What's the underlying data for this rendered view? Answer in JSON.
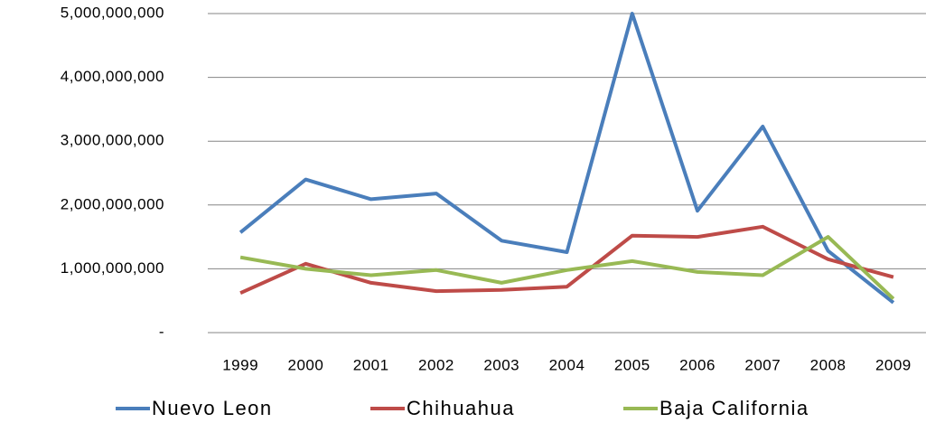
{
  "chart_data": {
    "type": "line",
    "categories": [
      "1999",
      "2000",
      "2001",
      "2002",
      "2003",
      "2004",
      "2005",
      "2006",
      "2007",
      "2008",
      "2009"
    ],
    "series": [
      {
        "name": "Nuevo Leon",
        "color": "#4a7ebb",
        "values": [
          1570000000,
          2400000000,
          2090000000,
          2180000000,
          1440000000,
          1260000000,
          5000000000,
          1910000000,
          3230000000,
          1280000000,
          470000000
        ]
      },
      {
        "name": "Chihuahua",
        "color": "#be4b48",
        "values": [
          620000000,
          1080000000,
          780000000,
          650000000,
          670000000,
          720000000,
          1520000000,
          1500000000,
          1660000000,
          1150000000,
          870000000
        ]
      },
      {
        "name": "Baja California",
        "color": "#98b954",
        "values": [
          1180000000,
          1000000000,
          900000000,
          980000000,
          780000000,
          980000000,
          1120000000,
          950000000,
          900000000,
          1500000000,
          530000000
        ]
      }
    ],
    "ylim": [
      0,
      5000000000
    ],
    "yticks": [
      {
        "value": 0,
        "label": "-"
      },
      {
        "value": 1000000000,
        "label": "1,000,000,000"
      },
      {
        "value": 2000000000,
        "label": "2,000,000,000"
      },
      {
        "value": 3000000000,
        "label": "3,000,000,000"
      },
      {
        "value": 4000000000,
        "label": "4,000,000,000"
      },
      {
        "value": 5000000000,
        "label": "5,000,000,000"
      }
    ],
    "grid": true,
    "legend": "bottom"
  }
}
